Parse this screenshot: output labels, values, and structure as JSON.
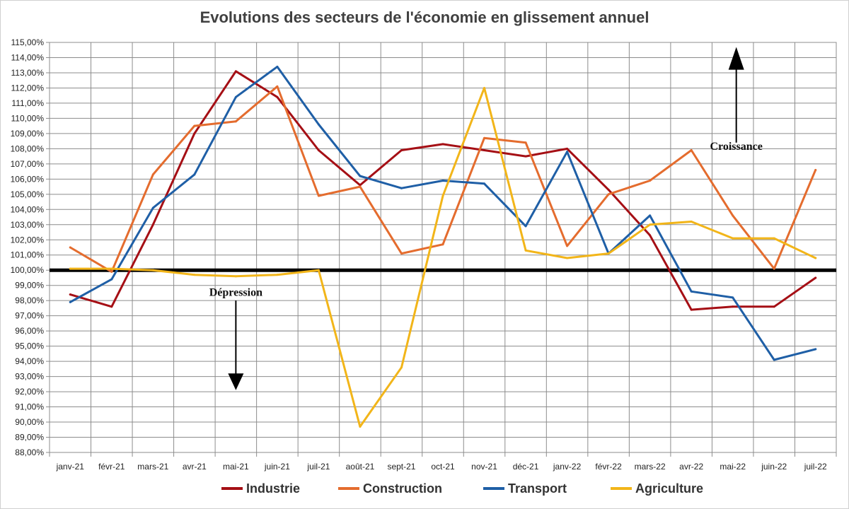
{
  "chart_data": {
    "type": "line",
    "title": "Evolutions des secteurs de l'économie en glissement annuel",
    "categories": [
      "janv-21",
      "févr-21",
      "mars-21",
      "avr-21",
      "mai-21",
      "juin-21",
      "juil-21",
      "août-21",
      "sept-21",
      "oct-21",
      "nov-21",
      "déc-21",
      "janv-22",
      "févr-22",
      "mars-22",
      "avr-22",
      "mai-22",
      "juin-22",
      "juil-22"
    ],
    "ylim": [
      88,
      115
    ],
    "ytick_step": 1,
    "y_tick_labels": [
      "88,00%",
      "89,00%",
      "90,00%",
      "91,00%",
      "92,00%",
      "93,00%",
      "94,00%",
      "95,00%",
      "96,00%",
      "97,00%",
      "98,00%",
      "99,00%",
      "100,00%",
      "101,00%",
      "102,00%",
      "103,00%",
      "104,00%",
      "105,00%",
      "106,00%",
      "107,00%",
      "108,00%",
      "109,00%",
      "110,00%",
      "111,00%",
      "112,00%",
      "113,00%",
      "114,00%",
      "115,00%"
    ],
    "grid": true,
    "reference_line": 100,
    "legend_position": "bottom",
    "series": [
      {
        "name": "Industrie",
        "color": "#A50F15",
        "values": [
          98.4,
          97.6,
          103.0,
          109.0,
          113.1,
          111.4,
          107.9,
          105.6,
          107.9,
          108.3,
          107.9,
          107.5,
          108.0,
          105.3,
          102.3,
          97.4,
          97.6,
          97.6,
          99.5
        ]
      },
      {
        "name": "Construction",
        "color": "#E46C2E",
        "values": [
          101.5,
          99.9,
          106.3,
          109.5,
          109.8,
          112.1,
          104.9,
          105.5,
          101.1,
          101.7,
          108.7,
          108.4,
          101.6,
          105.0,
          105.9,
          107.9,
          103.6,
          100.1,
          106.6
        ]
      },
      {
        "name": "Transport",
        "color": "#1F5FA6",
        "values": [
          97.9,
          99.4,
          104.1,
          106.3,
          111.4,
          113.4,
          109.6,
          106.2,
          105.4,
          105.9,
          105.7,
          102.9,
          107.8,
          101.1,
          103.6,
          98.6,
          98.2,
          94.1,
          94.8
        ]
      },
      {
        "name": "Agriculture",
        "color": "#F2B519",
        "values": [
          100.1,
          100.1,
          100.0,
          99.7,
          99.6,
          99.7,
          100.0,
          89.7,
          93.6,
          104.9,
          112.0,
          101.3,
          100.8,
          101.1,
          103.0,
          103.2,
          102.1,
          102.1,
          100.8
        ]
      }
    ],
    "annotations": [
      {
        "text": "Croissance",
        "arrow": "up"
      },
      {
        "text": "Dépression",
        "arrow": "down"
      }
    ]
  }
}
